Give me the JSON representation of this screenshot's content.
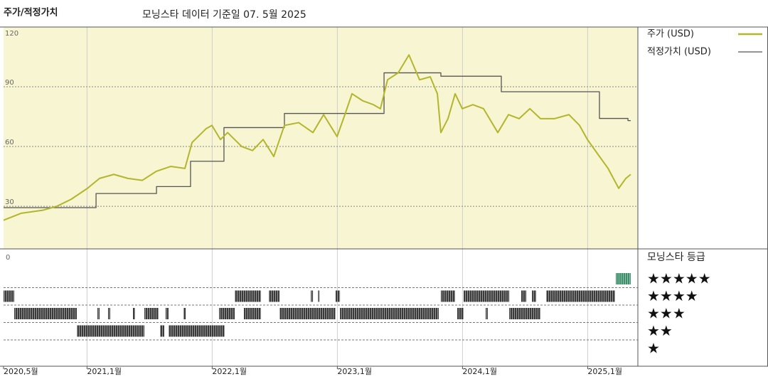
{
  "chart_data": {
    "type": "line",
    "title": "주가/적정가치",
    "subtitle": "모닝스타 데이터 기준일 07. 5월 2025",
    "background": "#f8f5d2",
    "legend": "right",
    "grid": true,
    "xlim": [
      2020.333,
      2025.401
    ],
    "xticks": [
      {
        "value": 2020.333,
        "label": "2020,5월"
      },
      {
        "value": 2021.0,
        "label": "2021,1월"
      },
      {
        "value": 2022.0,
        "label": "2022,1월"
      },
      {
        "value": 2023.0,
        "label": "2023,1월"
      },
      {
        "value": 2024.0,
        "label": "2024,1월"
      },
      {
        "value": 2025.0,
        "label": "2025,1월"
      }
    ],
    "ylim": [
      8.6,
      120
    ],
    "yticks": [
      30,
      60,
      90,
      120
    ],
    "series": [
      {
        "name": "주가 (USD)",
        "color": "#b3b62c",
        "x": [
          2020.333,
          2020.475,
          2020.646,
          2020.759,
          2020.873,
          2021.003,
          2021.1,
          2021.214,
          2021.327,
          2021.441,
          2021.555,
          2021.668,
          2021.782,
          2021.839,
          2021.952,
          2021.998,
          2022.066,
          2022.123,
          2022.236,
          2022.322,
          2022.407,
          2022.492,
          2022.577,
          2022.691,
          2022.805,
          2022.89,
          2022.998,
          2023.06,
          2023.117,
          2023.202,
          2023.288,
          2023.344,
          2023.401,
          2023.486,
          2023.572,
          2023.657,
          2023.742,
          2023.799,
          2023.827,
          2023.884,
          2023.941,
          2023.998,
          2024.083,
          2024.168,
          2024.282,
          2024.367,
          2024.452,
          2024.538,
          2024.623,
          2024.736,
          2024.85,
          2024.935,
          2024.998,
          2025.077,
          2025.163,
          2025.248,
          2025.305,
          2025.344
        ],
        "values": [
          23,
          26.5,
          28,
          30,
          33.5,
          39,
          44,
          46,
          44,
          43,
          47.6,
          50,
          49,
          62,
          69,
          70.6,
          63.5,
          67,
          60,
          58,
          63.5,
          55,
          70.6,
          72,
          67,
          76,
          65,
          76,
          86.5,
          83,
          81,
          79,
          93.5,
          97,
          106,
          93.5,
          95,
          86.5,
          67,
          74,
          86.5,
          79,
          81,
          79,
          67,
          76,
          74,
          79,
          74,
          74,
          76,
          70.6,
          63.5,
          56.5,
          49,
          39,
          44,
          46
        ]
      },
      {
        "name": "적정가치 (USD)",
        "color": "#555555",
        "drawstyle": "steps-post",
        "x": [
          2020.333,
          2021.072,
          2021.555,
          2021.827,
          2022.094,
          2022.577,
          2023.373,
          2023.827,
          2024.31,
          2025.094,
          2025.322,
          2025.344
        ],
        "values": [
          29.3,
          36.4,
          39.9,
          52.6,
          69.5,
          76.6,
          97,
          95.3,
          87.5,
          74.1,
          73,
          73
        ]
      }
    ],
    "ratings": {
      "title": "모닝스타 등급",
      "axis_label": "0",
      "star_labels": [
        "★★★★★",
        "★★★★",
        "★★★",
        "★★",
        "★"
      ],
      "star_values": [
        5,
        4,
        3,
        2,
        1
      ],
      "colors": {
        "5": "#3e8c6c",
        "other": "#333333"
      },
      "segments": [
        {
          "stars": 5,
          "start": 2025.225,
          "end": 2025.344
        },
        {
          "stars": 4,
          "start": 2020.333,
          "end": 2020.418
        },
        {
          "stars": 4,
          "start": 2022.18,
          "end": 2022.39
        },
        {
          "stars": 4,
          "start": 2022.452,
          "end": 2022.538
        },
        {
          "stars": 4,
          "start": 2022.788,
          "end": 2022.805
        },
        {
          "stars": 4,
          "start": 2022.844,
          "end": 2022.856
        },
        {
          "stars": 4,
          "start": 2022.986,
          "end": 2023.021
        },
        {
          "stars": 4,
          "start": 2023.827,
          "end": 2023.941
        },
        {
          "stars": 4,
          "start": 2024.009,
          "end": 2024.373
        },
        {
          "stars": 4,
          "start": 2024.469,
          "end": 2024.509
        },
        {
          "stars": 4,
          "start": 2024.555,
          "end": 2024.589
        },
        {
          "stars": 4,
          "start": 2024.668,
          "end": 2025.219
        },
        {
          "stars": 3,
          "start": 2020.418,
          "end": 2020.918
        },
        {
          "stars": 3,
          "start": 2021.083,
          "end": 2021.1
        },
        {
          "stars": 3,
          "start": 2021.168,
          "end": 2021.185
        },
        {
          "stars": 3,
          "start": 2021.367,
          "end": 2021.384
        },
        {
          "stars": 3,
          "start": 2021.458,
          "end": 2021.572
        },
        {
          "stars": 3,
          "start": 2021.628,
          "end": 2021.651
        },
        {
          "stars": 3,
          "start": 2021.77,
          "end": 2021.788
        },
        {
          "stars": 3,
          "start": 2022.055,
          "end": 2022.18
        },
        {
          "stars": 3,
          "start": 2022.253,
          "end": 2022.39
        },
        {
          "stars": 3,
          "start": 2022.538,
          "end": 2022.986
        },
        {
          "stars": 3,
          "start": 2023.021,
          "end": 2023.81
        },
        {
          "stars": 3,
          "start": 2023.958,
          "end": 2024.009
        },
        {
          "stars": 3,
          "start": 2024.185,
          "end": 2024.202
        },
        {
          "stars": 3,
          "start": 2024.373,
          "end": 2024.623
        },
        {
          "stars": 2,
          "start": 2020.918,
          "end": 2021.458
        },
        {
          "stars": 2,
          "start": 2021.583,
          "end": 2021.617
        },
        {
          "stars": 2,
          "start": 2021.651,
          "end": 2022.1
        }
      ]
    }
  }
}
